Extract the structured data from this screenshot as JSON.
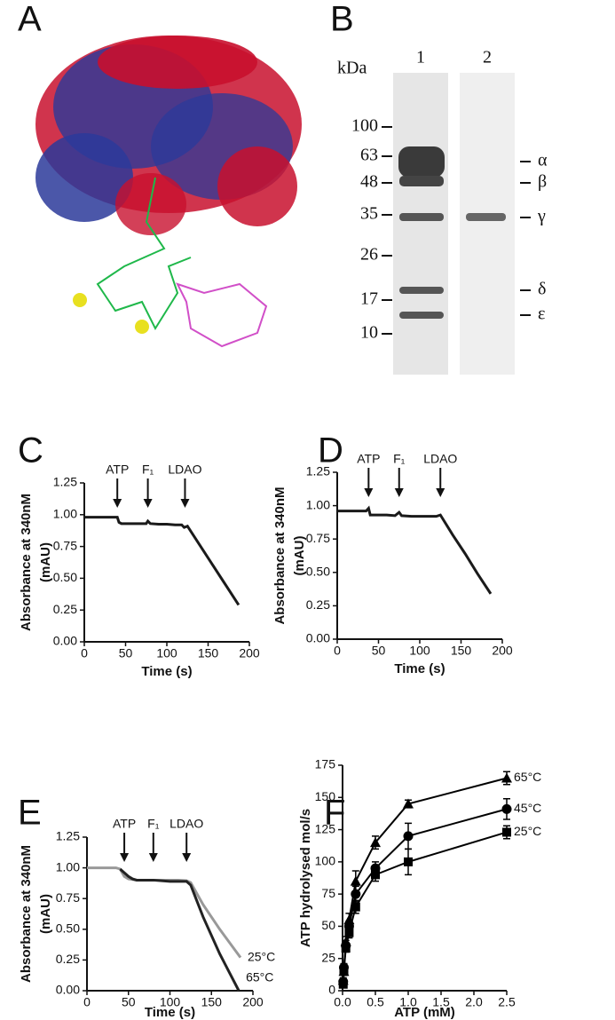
{
  "figure": {
    "panel_labels": [
      "A",
      "B",
      "C",
      "D",
      "E",
      "F"
    ],
    "gel": {
      "unit": "kDa",
      "lanes": [
        "1",
        "2"
      ],
      "markers": [
        100,
        63,
        48,
        35,
        26,
        17,
        10
      ],
      "subunits": [
        "α",
        "β",
        "γ",
        "δ",
        "ε"
      ]
    }
  },
  "chart_data": [
    {
      "type": "line",
      "xlabel": "Time (s)",
      "ylabel": [
        "Absorbance at 340nM",
        "(mAU)"
      ],
      "xlim": [
        0,
        200
      ],
      "ylim": [
        0,
        1.25
      ],
      "xticks": [
        0,
        50,
        100,
        150,
        200
      ],
      "yticks": [
        {
          "value": 0,
          "label": "0.00"
        },
        {
          "value": 0.25,
          "label": "0.25"
        },
        {
          "value": 0.5,
          "label": "0.50"
        },
        {
          "value": 0.75,
          "label": "0.75"
        },
        {
          "value": 1,
          "label": "1.00"
        },
        {
          "value": 1.25,
          "label": "1.25"
        }
      ],
      "annotations": [
        {
          "text": "ATP",
          "x": 40
        },
        {
          "text": "F₁",
          "x": 77
        },
        {
          "text": "LDAO",
          "x": 122
        }
      ],
      "series": [
        {
          "color": "#1a1a1a",
          "x": [
            0,
            5,
            10,
            15,
            20,
            25,
            30,
            35,
            40,
            42,
            45,
            55,
            65,
            75,
            77,
            80,
            90,
            100,
            110,
            118,
            121,
            125,
            140,
            155,
            170,
            187
          ],
          "values": [
            0.98,
            0.98,
            0.98,
            0.98,
            0.98,
            0.98,
            0.98,
            0.98,
            0.98,
            0.94,
            0.93,
            0.93,
            0.93,
            0.93,
            0.95,
            0.93,
            0.925,
            0.925,
            0.92,
            0.92,
            0.9,
            0.91,
            0.76,
            0.61,
            0.46,
            0.29
          ]
        }
      ]
    },
    {
      "type": "line",
      "xlabel": "Time (s)",
      "ylabel": [
        "Absorbance at 340nM",
        "(mAU)"
      ],
      "xlim": [
        0,
        200
      ],
      "ylim": [
        0,
        1.25
      ],
      "xticks": [
        0,
        50,
        100,
        150,
        200
      ],
      "yticks": [
        {
          "value": 0,
          "label": "0.00"
        },
        {
          "value": 0.25,
          "label": "0.25"
        },
        {
          "value": 0.5,
          "label": "0.50"
        },
        {
          "value": 0.75,
          "label": "0.75"
        },
        {
          "value": 1,
          "label": "1.00"
        },
        {
          "value": 1.25,
          "label": "1.25"
        }
      ],
      "annotations": [
        {
          "text": "ATP",
          "x": 38
        },
        {
          "text": "F₁",
          "x": 75
        },
        {
          "text": "LDAO",
          "x": 125
        }
      ],
      "series": [
        {
          "color": "#1a1a1a",
          "x": [
            0,
            10,
            20,
            30,
            35,
            38,
            40,
            50,
            60,
            70,
            75,
            78,
            90,
            100,
            110,
            120,
            125,
            140,
            155,
            170,
            186
          ],
          "values": [
            0.96,
            0.96,
            0.96,
            0.96,
            0.96,
            0.98,
            0.93,
            0.93,
            0.93,
            0.925,
            0.95,
            0.925,
            0.92,
            0.92,
            0.92,
            0.92,
            0.93,
            0.78,
            0.64,
            0.49,
            0.34
          ]
        }
      ]
    },
    {
      "type": "line",
      "xlabel": "Time (s)",
      "ylabel": [
        "Absorbance at 340nM",
        "(mAU)"
      ],
      "xlim": [
        0,
        200
      ],
      "ylim": [
        0,
        1.25
      ],
      "xticks": [
        0,
        50,
        100,
        150,
        200
      ],
      "yticks": [
        {
          "value": 0,
          "label": "0.00"
        },
        {
          "value": 0.25,
          "label": "0.25"
        },
        {
          "value": 0.5,
          "label": "0.50"
        },
        {
          "value": 0.75,
          "label": "0.75"
        },
        {
          "value": 1,
          "label": "1.00"
        },
        {
          "value": 1.25,
          "label": "1.25"
        }
      ],
      "annotations": [
        {
          "text": "ATP",
          "x": 45
        },
        {
          "text": "F₁",
          "x": 80
        },
        {
          "text": "LDAO",
          "x": 120
        }
      ],
      "series": [
        {
          "name": "25°C",
          "color": "#999999",
          "x": [
            0,
            10,
            20,
            30,
            35,
            40,
            45,
            50,
            60,
            70,
            80,
            90,
            100,
            110,
            120,
            125,
            140,
            160,
            185
          ],
          "values": [
            1.0,
            1.0,
            1.0,
            1.0,
            1.0,
            0.99,
            0.93,
            0.91,
            0.9,
            0.9,
            0.9,
            0.9,
            0.9,
            0.9,
            0.895,
            0.88,
            0.7,
            0.5,
            0.27
          ]
        },
        {
          "name": "65°C",
          "color": "#222222",
          "x": [
            40,
            45,
            50,
            55,
            60,
            80,
            100,
            120,
            125,
            140,
            160,
            183
          ],
          "values": [
            0.99,
            0.96,
            0.93,
            0.91,
            0.9,
            0.9,
            0.89,
            0.89,
            0.86,
            0.6,
            0.3,
            0.0
          ]
        }
      ]
    },
    {
      "type": "scatter",
      "xlabel": "ATP (mM)",
      "ylabel": "ATP hydrolysed mol/s",
      "xlim": [
        0,
        2.5
      ],
      "ylim": [
        0,
        175
      ],
      "xticks": [
        {
          "value": 0,
          "label": "0.0"
        },
        {
          "value": 0.5,
          "label": "0.5"
        },
        {
          "value": 1,
          "label": "1.0"
        },
        {
          "value": 1.5,
          "label": "1.5"
        },
        {
          "value": 2,
          "label": "2.0"
        },
        {
          "value": 2.5,
          "label": "2.5"
        }
      ],
      "yticks": [
        0,
        25,
        50,
        75,
        100,
        125,
        150,
        175
      ],
      "x": [
        0.01,
        0.02,
        0.05,
        0.1,
        0.2,
        0.5,
        1,
        2.5
      ],
      "series": [
        {
          "name": "65°C",
          "marker": "triangle",
          "color": "#000000",
          "values": [
            8,
            15,
            38,
            55,
            85,
            115,
            145,
            165
          ],
          "errors": [
            2,
            3,
            4,
            5,
            8,
            5,
            3,
            5
          ]
        },
        {
          "name": "45°C",
          "marker": "circle",
          "color": "#000000",
          "values": [
            7,
            18,
            35,
            50,
            75,
            95,
            120,
            141
          ],
          "errors": [
            2,
            3,
            4,
            4,
            6,
            5,
            10,
            8
          ]
        },
        {
          "name": "25°C",
          "marker": "square",
          "color": "#000000",
          "values": [
            5,
            15,
            33,
            45,
            65,
            90,
            100,
            123
          ],
          "errors": [
            2,
            3,
            3,
            4,
            5,
            5,
            10,
            5
          ]
        }
      ]
    }
  ]
}
